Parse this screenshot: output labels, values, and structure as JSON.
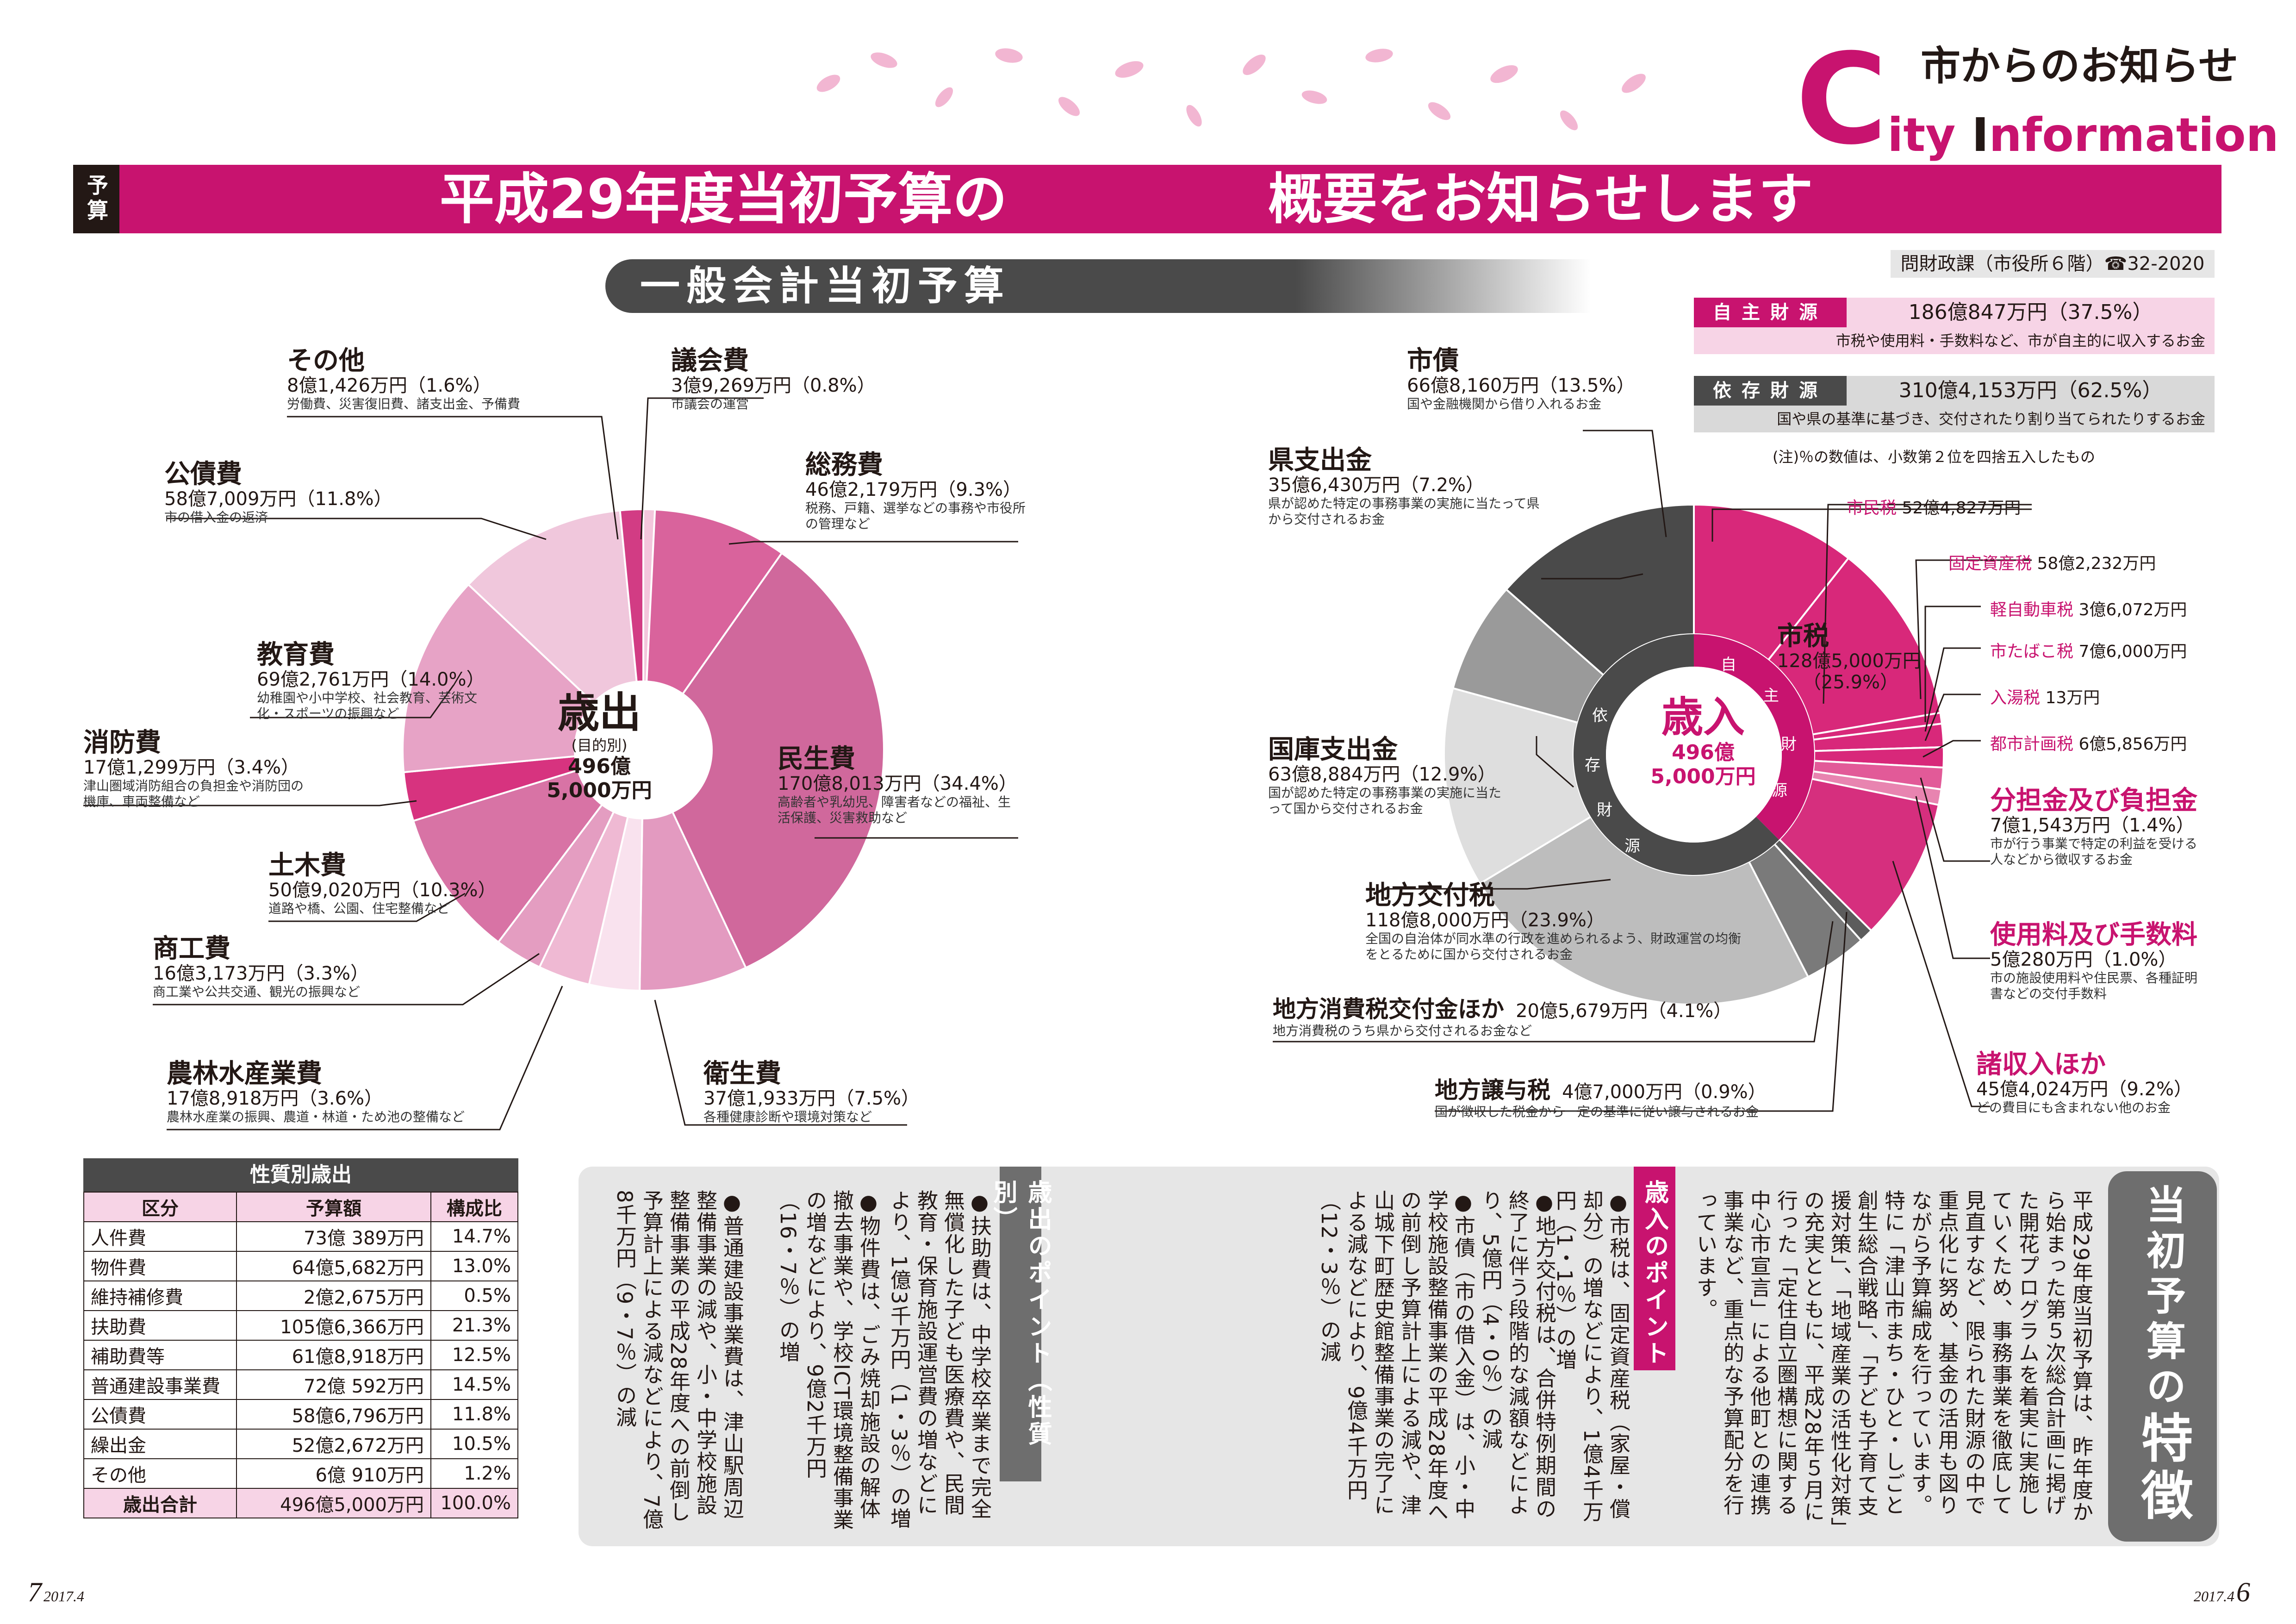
{
  "header": {
    "section_title": "市からのお知らせ",
    "brand_c": "C",
    "brand_rest_1": "ity ",
    "brand_i": "I",
    "brand_rest_2": "nformation",
    "tag": "予算",
    "title_left": "平成29年度当初予算の",
    "title_right": "概要をお知らせします",
    "subtitle": "一般会計当初予算",
    "contact": "問財政課（市役所６階）☎32-2020"
  },
  "colors": {
    "magenta": "#c8136f",
    "dark_gray": "#4a4a4a",
    "pink_light": "#f7d4e6"
  },
  "revenue_summary": {
    "jishu": {
      "label": "自主財源",
      "amount": "186億847万円（37.5%）",
      "desc": "市税や使用料・手数料など、市が自主的に収入するお金"
    },
    "izon": {
      "label": "依存財源",
      "amount": "310億4,153万円（62.5%）",
      "desc": "国や県の基準に基づき、交付されたり割り当てられたりするお金"
    },
    "note": "(注)％の数値は、小数第２位を四捨五入したもの"
  },
  "expenditure": {
    "center_title": "歳出",
    "center_sub": "(目的別)",
    "center_total_1": "496億",
    "center_total_2": "5,000万円",
    "items": [
      {
        "name": "議会費",
        "amount": "3億9,269万円（0.8%）",
        "desc": "市議会の運営"
      },
      {
        "name": "総務費",
        "amount": "46億2,179万円（9.3%）",
        "desc": "税務、戸籍、選挙などの事務や市役所の管理など"
      },
      {
        "name": "民生費",
        "amount": "170億8,013万円（34.4%）",
        "desc": "高齢者や乳幼児、障害者などの福祉、生活保護、災害救助など"
      },
      {
        "name": "衛生費",
        "amount": "37億1,933万円（7.5%）",
        "desc": "各種健康診断や環境対策など"
      },
      {
        "name": "農林水産業費",
        "amount": "17億8,918万円（3.6%）",
        "desc": "農林水産業の振興、農道・林道・ため池の整備など"
      },
      {
        "name": "商工費",
        "amount": "16億3,173万円（3.3%）",
        "desc": "商工業や公共交通、観光の振興など"
      },
      {
        "name": "土木費",
        "amount": "50億9,020万円（10.3%）",
        "desc": "道路や橋、公園、住宅整備など"
      },
      {
        "name": "消防費",
        "amount": "17億1,299万円（3.4%）",
        "desc": "津山圏域消防組合の負担金や消防団の機庫、車両整備など"
      },
      {
        "name": "教育費",
        "amount": "69億2,761万円（14.0%）",
        "desc": "幼稚園や小中学校、社会教育、芸術文化・スポーツの振興など"
      },
      {
        "name": "公債費",
        "amount": "58億7,009万円（11.8%）",
        "desc": "市の借入金の返済"
      },
      {
        "name": "その他",
        "amount": "8億1,426万円（1.6%）",
        "desc": "労働費、災害復旧費、諸支出金、予備費"
      }
    ]
  },
  "revenue": {
    "center_title": "歳入",
    "center_total_1": "496億",
    "center_total_2": "5,000万円",
    "ring_jishu": [
      "自",
      "主",
      "財",
      "源"
    ],
    "ring_izon": [
      "依",
      "存",
      "財",
      "源"
    ],
    "items": [
      {
        "name": "市税",
        "amount": "128億5,000万円",
        "pct": "（25.9%）",
        "desc": ""
      },
      {
        "name": "分担金及び負担金",
        "amount": "7億1,543万円（1.4%）",
        "desc": "市が行う事業で特定の利益を受ける人などから徴収するお金"
      },
      {
        "name": "使用料及び手数料",
        "amount": "5億280万円（1.0%）",
        "desc": "市の施設使用料や住民票、各種証明書などの交付手数料"
      },
      {
        "name": "諸収入ほか",
        "amount": "45億4,024万円（9.2%）",
        "desc": "どの費目にも含まれない他のお金"
      },
      {
        "name": "地方譲与税",
        "amount": "4億7,000万円（0.9%）",
        "desc": "国が徴収した税金から一定の基準に従い譲与されるお金"
      },
      {
        "name": "地方消費税交付金ほか",
        "amount": "20億5,679万円（4.1%）",
        "desc": "地方消費税のうち県から交付されるお金など"
      },
      {
        "name": "地方交付税",
        "amount": "118億8,000万円（23.9%）",
        "desc": "全国の自治体が同水準の行政を進められるよう、財政運営の均衡をとるために国から交付されるお金"
      },
      {
        "name": "国庫支出金",
        "amount": "63億8,884万円（12.9%）",
        "desc": "国が認めた特定の事務事業の実施に当たって国から交付されるお金"
      },
      {
        "name": "県支出金",
        "amount": "35億6,430万円（7.2%）",
        "desc": "県が認めた特定の事務事業の実施に当たって県から交付されるお金"
      },
      {
        "name": "市債",
        "amount": "66億8,160万円（13.5%）",
        "desc": "国や金融機関から借り入れるお金"
      }
    ],
    "city_tax_breakdown": [
      {
        "name": "市民税",
        "amount": "52億4,827万円"
      },
      {
        "name": "固定資産税",
        "amount": "58億2,232万円"
      },
      {
        "name": "軽自動車税",
        "amount": "3億6,072万円"
      },
      {
        "name": "市たばこ税",
        "amount": "7億6,000万円"
      },
      {
        "name": "入湯税",
        "amount": "13万円"
      },
      {
        "name": "都市計画税",
        "amount": "6億5,856万円"
      }
    ]
  },
  "nature_table": {
    "title": "性質別歳出",
    "headers": [
      "区分",
      "予算額",
      "構成比"
    ],
    "rows": [
      [
        "人件費",
        "73億 389万円",
        "14.7%"
      ],
      [
        "物件費",
        "64億5,682万円",
        "13.0%"
      ],
      [
        "維持補修費",
        "2億2,675万円",
        "0.5%"
      ],
      [
        "扶助費",
        "105億6,366万円",
        "21.3%"
      ],
      [
        "補助費等",
        "61億8,918万円",
        "12.5%"
      ],
      [
        "普通建設事業費",
        "72億 592万円",
        "14.5%"
      ],
      [
        "公債費",
        "58億6,796万円",
        "11.8%"
      ],
      [
        "繰出金",
        "52億2,672万円",
        "10.5%"
      ],
      [
        "その他",
        "6億 910万円",
        "1.2%"
      ]
    ],
    "total": [
      "歳出合計",
      "496億5,000万円",
      "100.0%"
    ]
  },
  "features": {
    "title_1": "当初予算の",
    "title_2": "特徴",
    "body": "平成29年度当初予算は、昨年度から始まった第５次総合計画に掲げた開花プログラムを着実に実施していくため、事務事業を徹底して見直すなど、限られた財源の中で重点化に努め、基金の活用も図りながら予算編成を行っています。特に「津山市まち・ひと・しごと創生総合戦略」、「子ども子育て支援対策」、「地域産業の活性化対策」の充実とともに、平成28年５月に行った「定住自立圏構想に関する中心市宣言」による他町との連携事業など、重点的な予算配分を行っています。",
    "rev_points_title": "歳入のポイント",
    "rev_points": [
      "●市税は、固定資産税（家屋・償却分）の増などにより、1億4千万円（1・1％）の増",
      "●地方交付税は、合併特例期間の終了に伴う段階的な減額などにより、5億円（4・0％）の減",
      "●市債（市の借入金）は、小・中学校施設整備事業の平成28年度への前倒し予算計上による減や、津山城下町歴史館整備事業の完了による減などにより、9億4千万円（12・3％）の減"
    ],
    "exp_points_title": "歳出のポイント（性質別）",
    "exp_points": [
      "●扶助費は、中学校卒業まで完全無償化した子ども医療費や、民間教育・保育施設運営費の増などにより、1億3千万円（1・3％）の増",
      "●物件費は、ごみ焼却施設の解体撤去事業や、学校ICT環境整備事業の増などにより、9億2千万円（16・7％）の増",
      "●普通建設事業費は、津山駅周辺整備事業の減や、小・中学校施設整備事業の平成28年度への前倒し予算計上による減などにより、7億8千万円（9・7％）の減"
    ]
  },
  "footer": {
    "left_page": "7",
    "left_date": "2017.4",
    "right_date": "2017.4",
    "right_page": "6"
  },
  "chart_data": [
    {
      "type": "pie",
      "title": "歳出（目的別）",
      "categories": [
        "議会費",
        "総務費",
        "民生費",
        "衛生費",
        "その他（淡）",
        "農林水産業費",
        "商工費",
        "土木費",
        "消防費",
        "教育費",
        "公債費",
        "その他"
      ],
      "values": [
        0.8,
        9.3,
        34.4,
        7.5,
        3.5,
        3.6,
        3.3,
        10.3,
        3.4,
        14.0,
        11.8,
        1.6
      ]
    },
    {
      "type": "pie",
      "title": "歳入",
      "categories": [
        "市民税",
        "固定資産税",
        "軽自動車税",
        "市たばこ税",
        "入湯税",
        "都市計画税",
        "分担金及び負担金",
        "使用料及び手数料",
        "諸収入ほか",
        "地方譲与税",
        "地方消費税交付金ほか",
        "地方交付税",
        "国庫支出金",
        "県支出金",
        "市債"
      ],
      "values": [
        10.6,
        11.7,
        0.7,
        1.5,
        0.0,
        1.3,
        1.4,
        1.0,
        9.2,
        0.9,
        4.1,
        23.9,
        12.9,
        7.2,
        13.5
      ]
    }
  ]
}
